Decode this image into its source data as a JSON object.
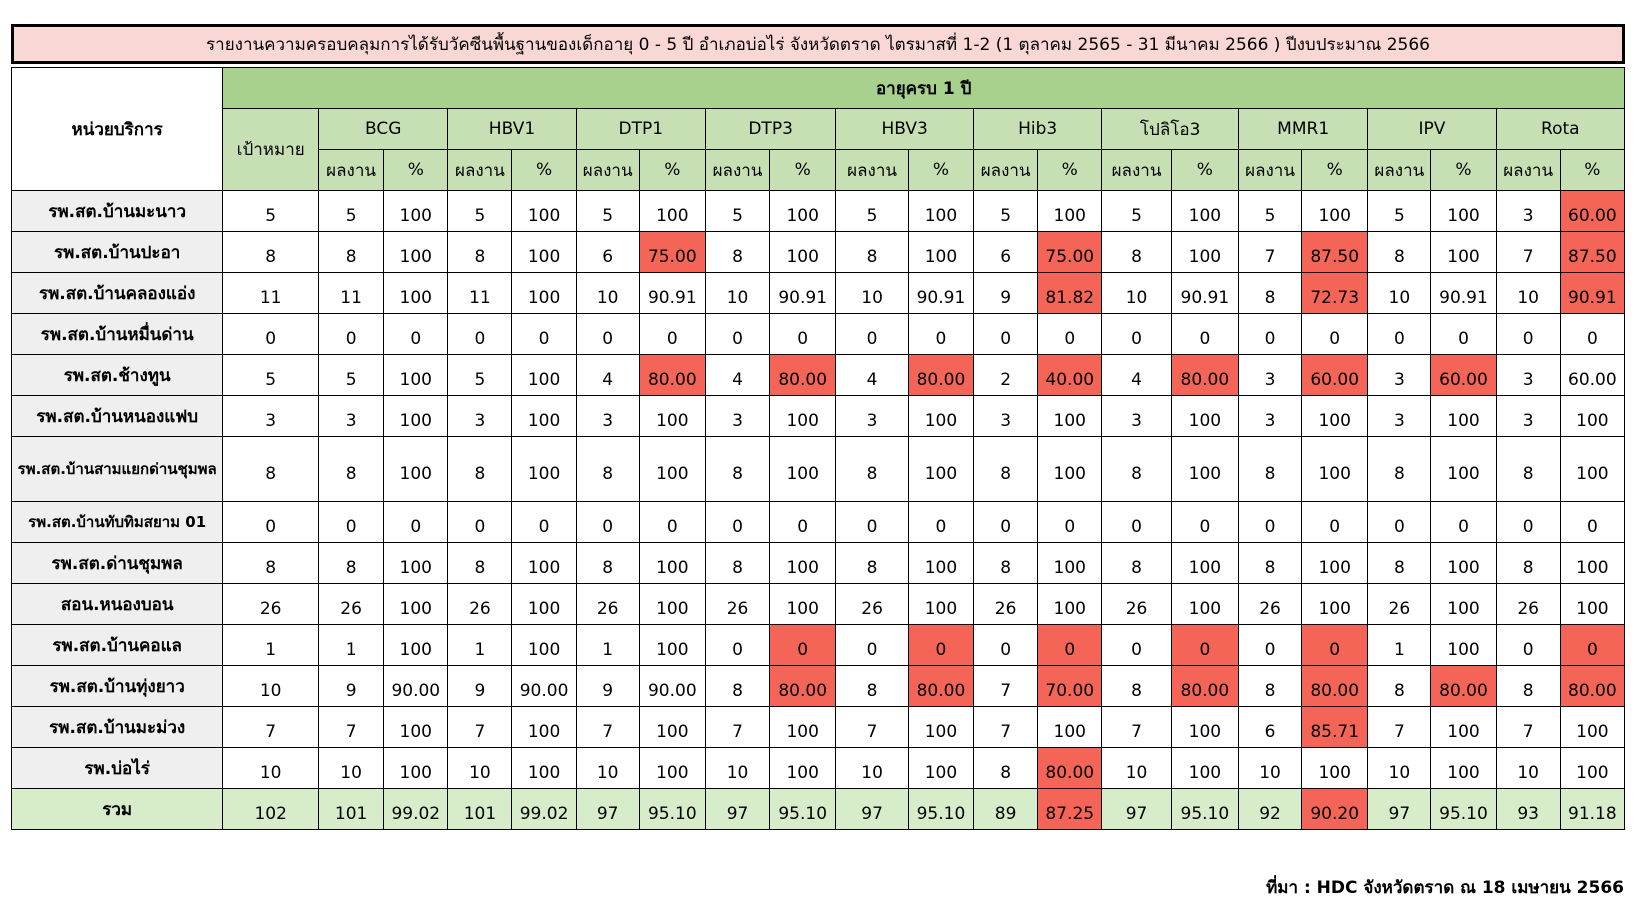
{
  "title": "รายงานความครอบคลุมการได้รับวัคซีนพื้นฐานของเด็กอายุ 0 - 5 ปี อำเภอบ่อไร่ จังหวัดตราด ไตรมาสที่ 1-2 (1 ตุลาคม 2565 - 31 มีนาคม 2566 ) ปีงบประมาณ 2566",
  "header": {
    "unit_label": "หน่วยบริการ",
    "age_group": "อายุครบ 1 ปี",
    "target_label": "เป้าหมาย",
    "result_label": "ผลงาน",
    "percent_label": "%",
    "vaccines": [
      "BCG",
      "HBV1",
      "DTP1",
      "DTP3",
      "HBV3",
      "Hib3",
      "โปลิโอ3",
      "MMR1",
      "IPV",
      "Rota"
    ]
  },
  "alert_color": "#f46557",
  "rows": [
    {
      "name": "รพ.สต.บ้านมะนาว",
      "target": "5",
      "cells": [
        [
          "5",
          "100",
          false
        ],
        [
          "5",
          "100",
          false
        ],
        [
          "5",
          "100",
          false
        ],
        [
          "5",
          "100",
          false
        ],
        [
          "5",
          "100",
          false
        ],
        [
          "5",
          "100",
          false
        ],
        [
          "5",
          "100",
          false
        ],
        [
          "5",
          "100",
          false
        ],
        [
          "5",
          "100",
          false
        ],
        [
          "3",
          "60.00",
          true
        ]
      ]
    },
    {
      "name": "รพ.สต.บ้านปะอา",
      "target": "8",
      "cells": [
        [
          "8",
          "100",
          false
        ],
        [
          "8",
          "100",
          false
        ],
        [
          "6",
          "75.00",
          true
        ],
        [
          "8",
          "100",
          false
        ],
        [
          "8",
          "100",
          false
        ],
        [
          "6",
          "75.00",
          true
        ],
        [
          "8",
          "100",
          false
        ],
        [
          "7",
          "87.50",
          true
        ],
        [
          "8",
          "100",
          false
        ],
        [
          "7",
          "87.50",
          true
        ]
      ]
    },
    {
      "name": "รพ.สต.บ้านคลองแอ่ง",
      "target": "11",
      "cells": [
        [
          "11",
          "100",
          false
        ],
        [
          "11",
          "100",
          false
        ],
        [
          "10",
          "90.91",
          false
        ],
        [
          "10",
          "90.91",
          false
        ],
        [
          "10",
          "90.91",
          false
        ],
        [
          "9",
          "81.82",
          true
        ],
        [
          "10",
          "90.91",
          false
        ],
        [
          "8",
          "72.73",
          true
        ],
        [
          "10",
          "90.91",
          false
        ],
        [
          "10",
          "90.91",
          true
        ]
      ]
    },
    {
      "name": "รพ.สต.บ้านหมื่นด่าน",
      "target": "0",
      "cells": [
        [
          "0",
          "0",
          false
        ],
        [
          "0",
          "0",
          false
        ],
        [
          "0",
          "0",
          false
        ],
        [
          "0",
          "0",
          false
        ],
        [
          "0",
          "0",
          false
        ],
        [
          "0",
          "0",
          false
        ],
        [
          "0",
          "0",
          false
        ],
        [
          "0",
          "0",
          false
        ],
        [
          "0",
          "0",
          false
        ],
        [
          "0",
          "0",
          false
        ]
      ]
    },
    {
      "name": "รพ.สต.ช้างทูน",
      "target": "5",
      "cells": [
        [
          "5",
          "100",
          false
        ],
        [
          "5",
          "100",
          false
        ],
        [
          "4",
          "80.00",
          true
        ],
        [
          "4",
          "80.00",
          true
        ],
        [
          "4",
          "80.00",
          true
        ],
        [
          "2",
          "40.00",
          true
        ],
        [
          "4",
          "80.00",
          true
        ],
        [
          "3",
          "60.00",
          true
        ],
        [
          "3",
          "60.00",
          true
        ],
        [
          "3",
          "60.00",
          false
        ]
      ]
    },
    {
      "name": "รพ.สต.บ้านหนองแฟบ",
      "target": "3",
      "cells": [
        [
          "3",
          "100",
          false
        ],
        [
          "3",
          "100",
          false
        ],
        [
          "3",
          "100",
          false
        ],
        [
          "3",
          "100",
          false
        ],
        [
          "3",
          "100",
          false
        ],
        [
          "3",
          "100",
          false
        ],
        [
          "3",
          "100",
          false
        ],
        [
          "3",
          "100",
          false
        ],
        [
          "3",
          "100",
          false
        ],
        [
          "3",
          "100",
          false
        ]
      ]
    },
    {
      "name": "รพ.สต.บ้านสามแยกด่านชุมพล",
      "target": "8",
      "tall": true,
      "small": true,
      "cells": [
        [
          "8",
          "100",
          false
        ],
        [
          "8",
          "100",
          false
        ],
        [
          "8",
          "100",
          false
        ],
        [
          "8",
          "100",
          false
        ],
        [
          "8",
          "100",
          false
        ],
        [
          "8",
          "100",
          false
        ],
        [
          "8",
          "100",
          false
        ],
        [
          "8",
          "100",
          false
        ],
        [
          "8",
          "100",
          false
        ],
        [
          "8",
          "100",
          false
        ]
      ]
    },
    {
      "name": "รพ.สต.บ้านทับทิมสยาม 01",
      "target": "0",
      "small": true,
      "cells": [
        [
          "0",
          "0",
          false
        ],
        [
          "0",
          "0",
          false
        ],
        [
          "0",
          "0",
          false
        ],
        [
          "0",
          "0",
          false
        ],
        [
          "0",
          "0",
          false
        ],
        [
          "0",
          "0",
          false
        ],
        [
          "0",
          "0",
          false
        ],
        [
          "0",
          "0",
          false
        ],
        [
          "0",
          "0",
          false
        ],
        [
          "0",
          "0",
          false
        ]
      ]
    },
    {
      "name": "รพ.สต.ด่านชุมพล",
      "target": "8",
      "cells": [
        [
          "8",
          "100",
          false
        ],
        [
          "8",
          "100",
          false
        ],
        [
          "8",
          "100",
          false
        ],
        [
          "8",
          "100",
          false
        ],
        [
          "8",
          "100",
          false
        ],
        [
          "8",
          "100",
          false
        ],
        [
          "8",
          "100",
          false
        ],
        [
          "8",
          "100",
          false
        ],
        [
          "8",
          "100",
          false
        ],
        [
          "8",
          "100",
          false
        ]
      ]
    },
    {
      "name": "สอน.หนองบอน",
      "target": "26",
      "cells": [
        [
          "26",
          "100",
          false
        ],
        [
          "26",
          "100",
          false
        ],
        [
          "26",
          "100",
          false
        ],
        [
          "26",
          "100",
          false
        ],
        [
          "26",
          "100",
          false
        ],
        [
          "26",
          "100",
          false
        ],
        [
          "26",
          "100",
          false
        ],
        [
          "26",
          "100",
          false
        ],
        [
          "26",
          "100",
          false
        ],
        [
          "26",
          "100",
          false
        ]
      ]
    },
    {
      "name": "รพ.สต.บ้านคอแล",
      "target": "1",
      "cells": [
        [
          "1",
          "100",
          false
        ],
        [
          "1",
          "100",
          false
        ],
        [
          "1",
          "100",
          false
        ],
        [
          "0",
          "0",
          true
        ],
        [
          "0",
          "0",
          true
        ],
        [
          "0",
          "0",
          true
        ],
        [
          "0",
          "0",
          true
        ],
        [
          "0",
          "0",
          true
        ],
        [
          "1",
          "100",
          false
        ],
        [
          "0",
          "0",
          true
        ]
      ]
    },
    {
      "name": "รพ.สต.บ้านทุ่งยาว",
      "target": "10",
      "cells": [
        [
          "9",
          "90.00",
          false
        ],
        [
          "9",
          "90.00",
          false
        ],
        [
          "9",
          "90.00",
          false
        ],
        [
          "8",
          "80.00",
          true
        ],
        [
          "8",
          "80.00",
          true
        ],
        [
          "7",
          "70.00",
          true
        ],
        [
          "8",
          "80.00",
          true
        ],
        [
          "8",
          "80.00",
          true
        ],
        [
          "8",
          "80.00",
          true
        ],
        [
          "8",
          "80.00",
          true
        ]
      ]
    },
    {
      "name": "รพ.สต.บ้านมะม่วง",
      "target": "7",
      "cells": [
        [
          "7",
          "100",
          false
        ],
        [
          "7",
          "100",
          false
        ],
        [
          "7",
          "100",
          false
        ],
        [
          "7",
          "100",
          false
        ],
        [
          "7",
          "100",
          false
        ],
        [
          "7",
          "100",
          false
        ],
        [
          "7",
          "100",
          false
        ],
        [
          "6",
          "85.71",
          true
        ],
        [
          "7",
          "100",
          false
        ],
        [
          "7",
          "100",
          false
        ]
      ]
    },
    {
      "name": "รพ.บ่อไร่",
      "target": "10",
      "cells": [
        [
          "10",
          "100",
          false
        ],
        [
          "10",
          "100",
          false
        ],
        [
          "10",
          "100",
          false
        ],
        [
          "10",
          "100",
          false
        ],
        [
          "10",
          "100",
          false
        ],
        [
          "8",
          "80.00",
          true
        ],
        [
          "10",
          "100",
          false
        ],
        [
          "10",
          "100",
          false
        ],
        [
          "10",
          "100",
          false
        ],
        [
          "10",
          "100",
          false
        ]
      ]
    }
  ],
  "total": {
    "name": "รวม",
    "target": "102",
    "cells": [
      [
        "101",
        "99.02",
        false
      ],
      [
        "101",
        "99.02",
        false
      ],
      [
        "97",
        "95.10",
        false
      ],
      [
        "97",
        "95.10",
        false
      ],
      [
        "97",
        "95.10",
        false
      ],
      [
        "89",
        "87.25",
        true
      ],
      [
        "97",
        "95.10",
        false
      ],
      [
        "92",
        "90.20",
        true
      ],
      [
        "97",
        "95.10",
        false
      ],
      [
        "93",
        "91.18",
        false
      ]
    ]
  },
  "source": "ที่มา : HDC จังหวัดตราด ณ 18 เมษายน 2566"
}
